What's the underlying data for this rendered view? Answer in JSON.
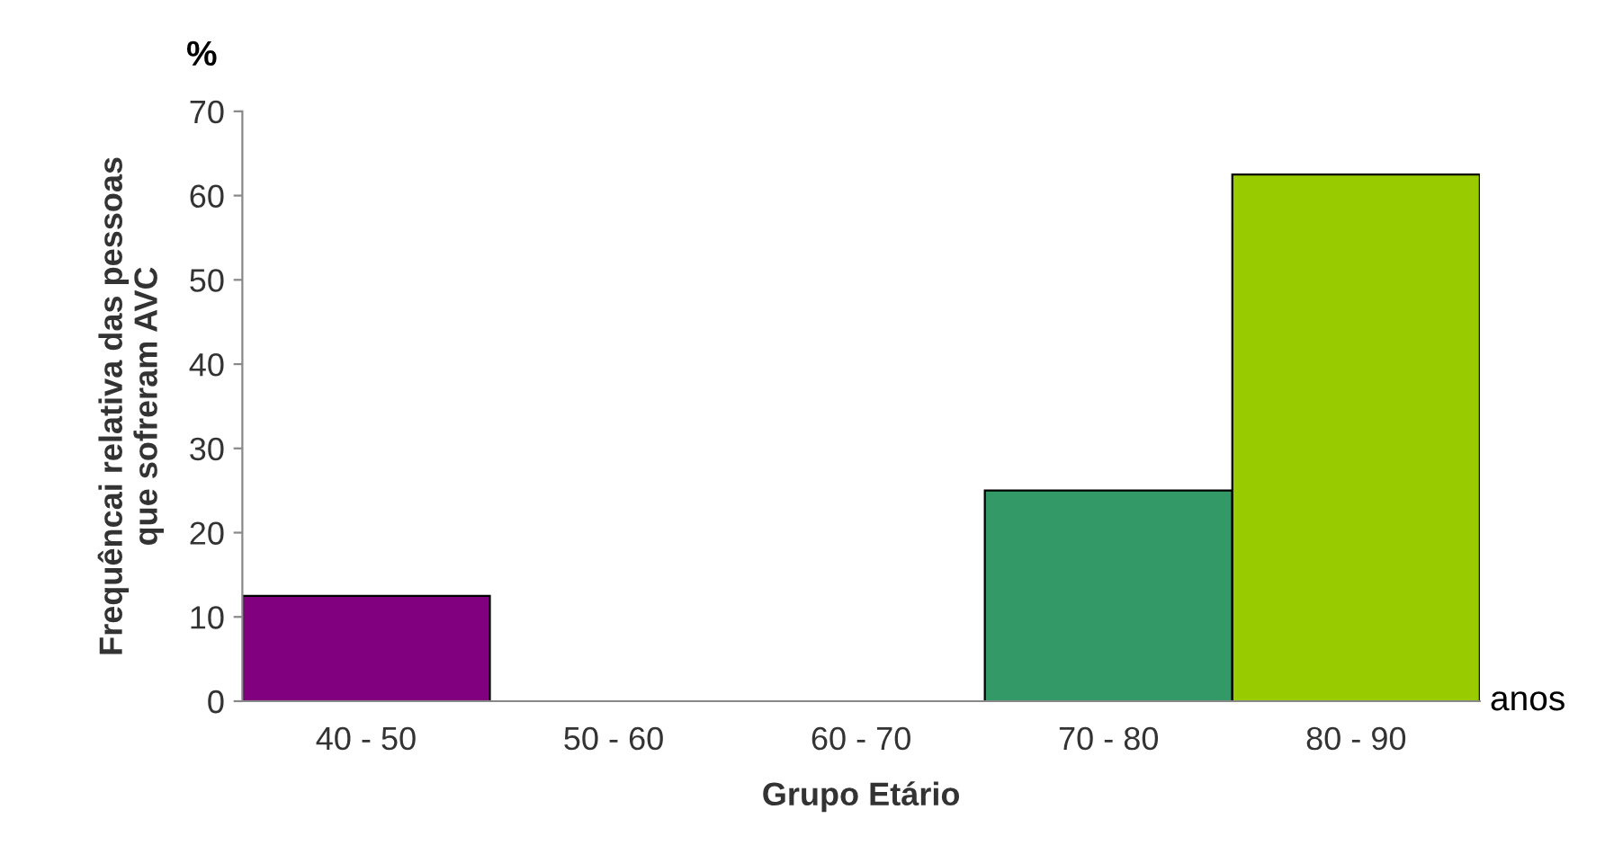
{
  "chart_data": {
    "type": "bar",
    "xlabel": "Grupo Etário",
    "ylabel": "Frequêncai relativa das pessoas\nque sofreram AVC",
    "categories": [
      "40 - 50",
      "50 - 60",
      "60 - 70",
      "70 - 80",
      "80 - 90"
    ],
    "values": [
      12.5,
      0,
      0,
      25,
      62.5
    ],
    "colors": [
      "#800080",
      "#800080",
      "#800080",
      "#339966",
      "#99cc00"
    ],
    "ylim": [
      0,
      70
    ],
    "yticks": [
      0,
      10,
      20,
      30,
      40,
      50,
      60,
      70
    ],
    "grid": false,
    "annotations": [
      "%",
      "anos"
    ]
  }
}
